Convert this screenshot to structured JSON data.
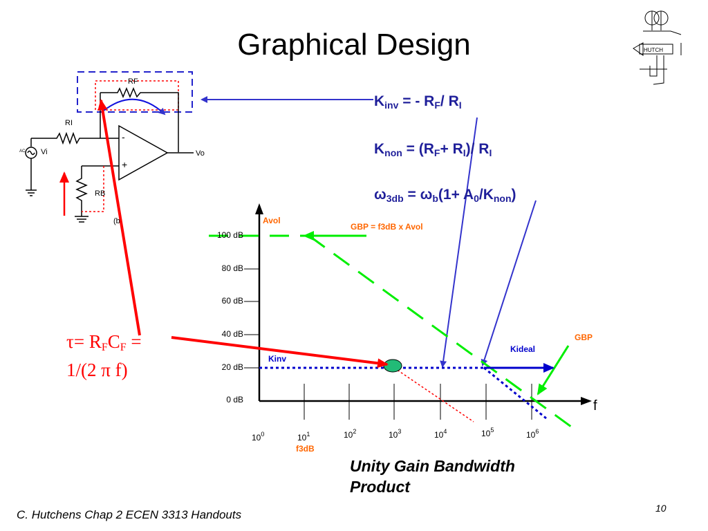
{
  "title": "Graphical Design",
  "equations": {
    "kinv": {
      "k": "K",
      "sub1": "inv",
      "mid": " = - R",
      "sub2": "F",
      "mid2": "/ R",
      "sub3": "I"
    },
    "knon": {
      "k": "K",
      "sub1": "non",
      "mid": " = (R",
      "sub2": "F",
      "mid2": "+ R",
      "sub3": "I",
      "end": ")/ R",
      "sub4": "I"
    },
    "w3db": {
      "w": "ω",
      "sub1": "3db",
      "mid": " = ",
      "w2": "ω",
      "sub2": "b",
      "mid2": "(1+ A",
      "sub3": "0",
      "mid3": "/K",
      "sub4": "non",
      "end": ")"
    }
  },
  "tau": {
    "line1_a": "τ= R",
    "sub1": "F",
    "line1_b": "C",
    "sub2": "F",
    "line1_c": " =",
    "line2": "1/(2 π f)"
  },
  "circuit": {
    "rf": "RF",
    "ri": "RI",
    "vi": "Vi",
    "ac": "AC",
    "vo": "Vo",
    "rb": "RB",
    "minus": "-",
    "plus": "+",
    "b_label": "(b"
  },
  "plot": {
    "y_ticks": [
      "100 dB",
      "80 dB",
      "60 dB",
      "40 dB",
      "20 dB",
      "0 dB"
    ],
    "x_ticks": [
      {
        "base": "10",
        "exp": "0"
      },
      {
        "base": "10",
        "exp": "1"
      },
      {
        "base": "10",
        "exp": "2"
      },
      {
        "base": "10",
        "exp": "3"
      },
      {
        "base": "10",
        "exp": "4"
      },
      {
        "base": "10",
        "exp": "5"
      },
      {
        "base": "10",
        "exp": "6"
      }
    ],
    "f3db": "f3dB",
    "x_axis_label": "f",
    "avol": "Avol",
    "gbp_eq": "GBP = f3dB x Avol",
    "gbp": "GBP",
    "kideal": "Kideal",
    "kinv": "Kinv",
    "colors": {
      "green": "#00ee00",
      "blue": "#0000cc",
      "red": "#ff0000",
      "orange": "#ff6600",
      "equation": "#1f1f9a",
      "node": "#22bb77"
    }
  },
  "caption": {
    "line1": "Unity Gain Bandwidth",
    "line2": "Product"
  },
  "footer": "C. Hutchens Chap 2 ECEN 3313 Handouts",
  "page_number": "10",
  "logo": {
    "label": "HUTCH"
  }
}
